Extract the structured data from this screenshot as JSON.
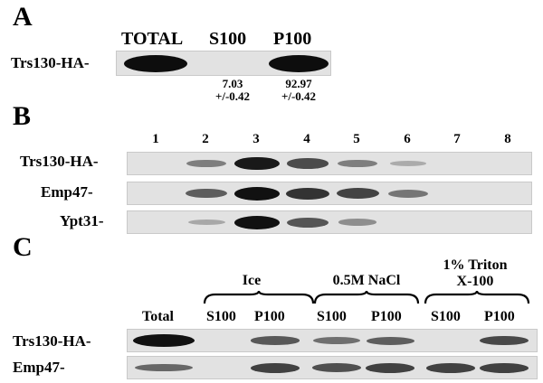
{
  "panel_a": {
    "letter": "A",
    "headers": {
      "total": "TOTAL",
      "s100": "S100",
      "p100": "P100"
    },
    "row_label": "Trs130-HA-",
    "s100_value": "7.03",
    "s100_error": "+/-0.42",
    "p100_value": "92.97",
    "p100_error": "+/-0.42"
  },
  "panel_b": {
    "letter": "B",
    "lanes": [
      "1",
      "2",
      "3",
      "4",
      "5",
      "6",
      "7",
      "8"
    ],
    "rows": [
      {
        "label": "Trs130-HA-",
        "intensities": [
          0,
          0.35,
          0.95,
          0.65,
          0.35,
          0.08,
          0,
          0
        ]
      },
      {
        "label": "Emp47-",
        "intensities": [
          0,
          0.55,
          1.0,
          0.8,
          0.7,
          0.4,
          0,
          0
        ]
      },
      {
        "label": "Ypt31-",
        "intensities": [
          0,
          0.1,
          1.0,
          0.6,
          0.25,
          0,
          0,
          0
        ]
      }
    ]
  },
  "panel_c": {
    "letter": "C",
    "groups": {
      "ice": "Ice",
      "nacl": "0.5M NaCl",
      "triton_line1": "1% Triton",
      "triton_line2": "X-100"
    },
    "column_labels": {
      "total": "Total",
      "s100_1": "S100",
      "p100_1": "P100",
      "s100_2": "S100",
      "p100_2": "P100",
      "s100_3": "S100",
      "p100_3": "P100"
    },
    "rows": [
      {
        "label": "Trs130-HA-",
        "intensities": [
          1.0,
          0,
          0.55,
          0.4,
          0.5,
          0,
          0.65
        ]
      },
      {
        "label": "Emp47-",
        "intensities": [
          0.45,
          0,
          0.7,
          0.6,
          0.7,
          0.7,
          0.7
        ]
      }
    ]
  },
  "colors": {
    "strip": "#e2e2e2",
    "band": "#111111"
  }
}
